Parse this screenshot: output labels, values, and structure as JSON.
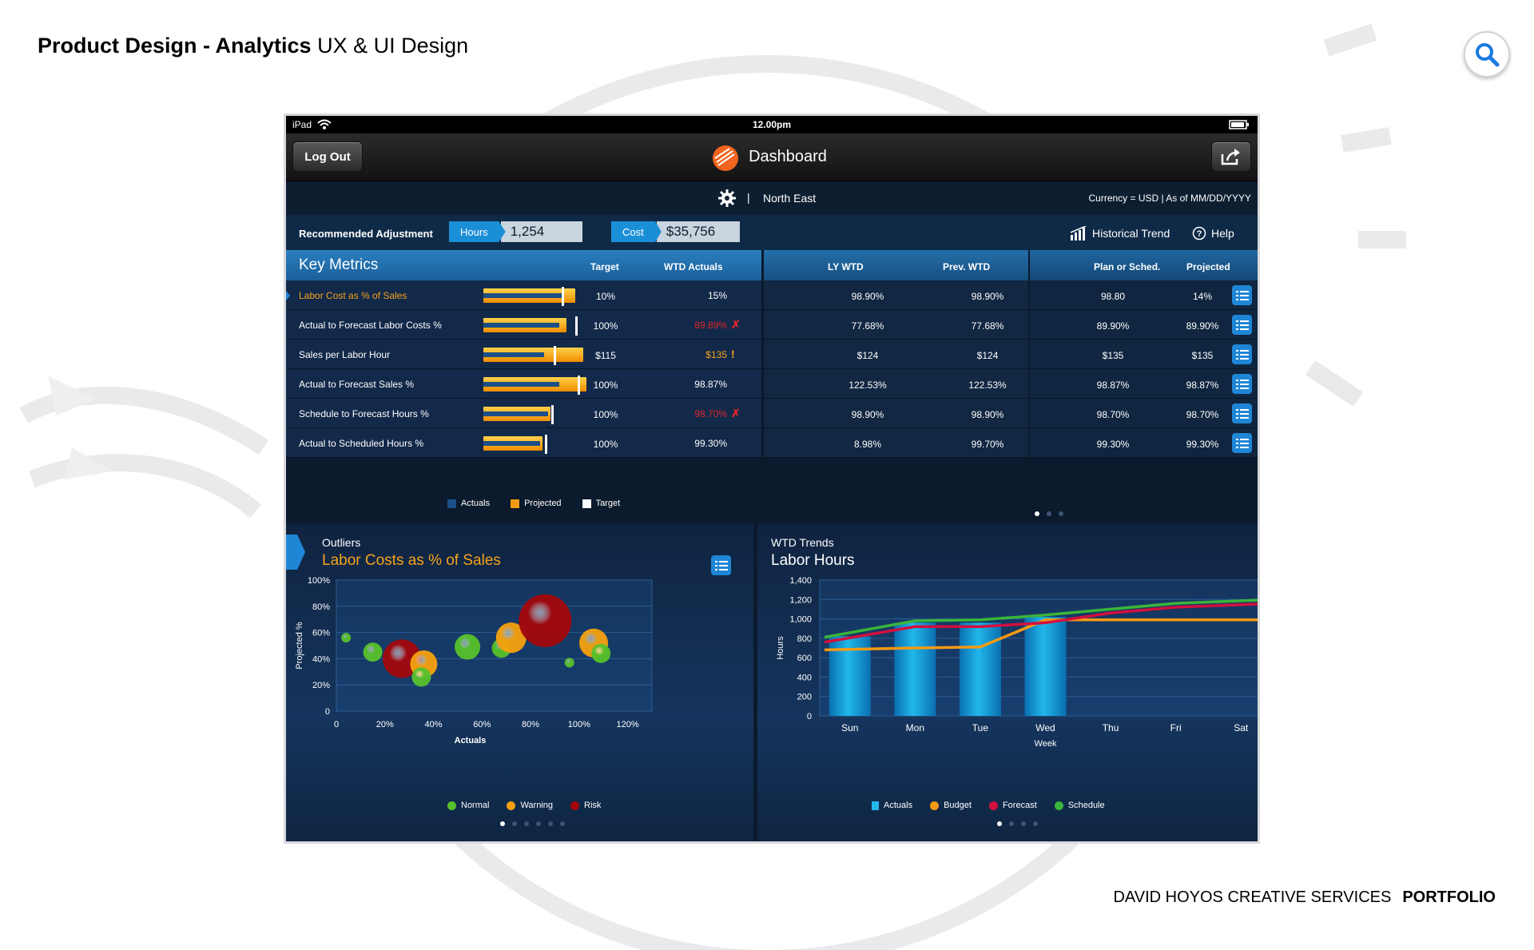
{
  "page": {
    "title_bold": "Product Design - Analytics",
    "title_rest": " UX & UI Design",
    "footer_name": "DAVID HOYOS CREATIVE SERVICES",
    "footer_bold": "PORTFOLIO",
    "search_icon": "search-icon"
  },
  "statusbar": {
    "device": "iPad",
    "time": "12.00pm"
  },
  "navbar": {
    "logout": "Log Out",
    "title": "Dashboard"
  },
  "region": {
    "name": "North East",
    "meta": "Currency = USD  |  As of MM/DD/YYYY",
    "sep": "|"
  },
  "adjustment": {
    "label": "Recommended Adjustment",
    "hours_tag": "Hours",
    "hours_val": "1,254",
    "cost_tag": "Cost",
    "cost_val": "$35,756",
    "historical": "Historical Trend",
    "help": "Help"
  },
  "metrics": {
    "title": "Key Metrics",
    "headers": {
      "target": "Target",
      "wtd": "WTD Actuals",
      "ly": "LY WTD",
      "prev": "Prev. WTD",
      "plan": "Plan or Sched.",
      "proj": "Projected"
    },
    "rows": [
      {
        "name": "Labor Cost as % of Sales",
        "highlight": true,
        "target": "10%",
        "actual": "15%",
        "actual_color": "#ffffff",
        "mark": "",
        "ly": "98.90%",
        "prev": "98.90%",
        "plan": "98.80",
        "proj": "14%",
        "bar_proj": 0.82,
        "bar_act": 0.7,
        "bar_tgt": 0.7
      },
      {
        "name": "Actual to Forecast Labor Costs %",
        "highlight": false,
        "target": "100%",
        "actual": "89.89%",
        "actual_color": "#e0262a",
        "mark": "✗",
        "mark_color": "#e0262a",
        "ly": "77.68%",
        "prev": "77.68%",
        "plan": "89.90%",
        "proj": "89.90%",
        "bar_proj": 0.74,
        "bar_act": 0.68,
        "bar_tgt": 0.82
      },
      {
        "name": "Sales per Labor Hour",
        "highlight": false,
        "target": "$115",
        "actual": "$135",
        "actual_color": "#f6a31c",
        "mark": "!",
        "mark_color": "#f6a31c",
        "ly": "$124",
        "prev": "$124",
        "plan": "$135",
        "proj": "$135",
        "bar_proj": 0.89,
        "bar_act": 0.54,
        "bar_tgt": 0.63
      },
      {
        "name": "Actual to Forecast Sales %",
        "highlight": false,
        "target": "100%",
        "actual": "98.87%",
        "actual_color": "#ffffff",
        "mark": "",
        "ly": "122.53%",
        "prev": "122.53%",
        "plan": "98.87%",
        "proj": "98.87%",
        "bar_proj": 0.92,
        "bar_act": 0.68,
        "bar_tgt": 0.84
      },
      {
        "name": "Schedule to Forecast Hours %",
        "highlight": false,
        "target": "100%",
        "actual": "98.70%",
        "actual_color": "#e0262a",
        "mark": "✗",
        "mark_color": "#e0262a",
        "ly": "98.90%",
        "prev": "98.90%",
        "plan": "98.70%",
        "proj": "98.70%",
        "bar_proj": 0.6,
        "bar_act": 0.58,
        "bar_tgt": 0.61
      },
      {
        "name": "Actual to Scheduled Hours %",
        "highlight": false,
        "target": "100%",
        "actual": "99.30%",
        "actual_color": "#ffffff",
        "mark": "",
        "ly": "8.98%",
        "prev": "99.70%",
        "plan": "99.30%",
        "proj": "99.30%",
        "bar_proj": 0.53,
        "bar_act": 0.51,
        "bar_tgt": 0.55
      }
    ],
    "legend": {
      "actuals": "Actuals",
      "projected": "Projected",
      "target": "Target"
    }
  },
  "colors": {
    "actual_bar": "#1b4f86",
    "projected_bar": "#f39a12",
    "normal": "#57c12b",
    "warning": "#f5a10f",
    "risk": "#a3080c",
    "budget": "#f59a14",
    "forecast": "#d2103e",
    "schedule": "#3bb53a",
    "actuals_col": "#21b8ea"
  },
  "outliers": {
    "kicker": "Outliers",
    "title": "Labor Costs as % of Sales",
    "legend": {
      "normal": "Normal",
      "warning": "Warning",
      "risk": "Risk"
    }
  },
  "trends": {
    "kicker": "WTD Trends",
    "title": "Labor Hours",
    "legend": {
      "actuals": "Actuals",
      "budget": "Budget",
      "forecast": "Forecast",
      "schedule": "Schedule"
    }
  },
  "chart_data": [
    {
      "type": "scatter",
      "title": "Labor Costs as % of Sales",
      "xlabel": "Actuals",
      "ylabel": "Projected %",
      "xticks": [
        "0",
        "20%",
        "40%",
        "60%",
        "80%",
        "100%",
        "120%"
      ],
      "yticks": [
        "0",
        "20%",
        "40%",
        "60%",
        "80%",
        "100%"
      ],
      "xlim": [
        0,
        130
      ],
      "ylim": [
        0,
        100
      ],
      "points": [
        {
          "x": 4,
          "y": 56,
          "size": 6,
          "status": "normal"
        },
        {
          "x": 15,
          "y": 45,
          "size": 12,
          "status": "normal"
        },
        {
          "x": 27,
          "y": 40,
          "size": 24,
          "status": "risk"
        },
        {
          "x": 36,
          "y": 36,
          "size": 17,
          "status": "warning"
        },
        {
          "x": 35,
          "y": 26,
          "size": 12,
          "status": "normal"
        },
        {
          "x": 54,
          "y": 49,
          "size": 16,
          "status": "normal"
        },
        {
          "x": 68,
          "y": 48,
          "size": 12,
          "status": "normal"
        },
        {
          "x": 72,
          "y": 56,
          "size": 19,
          "status": "warning"
        },
        {
          "x": 86,
          "y": 69,
          "size": 33,
          "status": "risk"
        },
        {
          "x": 96,
          "y": 37,
          "size": 6,
          "status": "normal"
        },
        {
          "x": 106,
          "y": 52,
          "size": 18,
          "status": "warning"
        },
        {
          "x": 109,
          "y": 44,
          "size": 12,
          "status": "normal"
        }
      ]
    },
    {
      "type": "bar",
      "title": "Labor Hours",
      "xlabel": "Week",
      "ylabel": "Hours",
      "categories": [
        "Sun",
        "Mon",
        "Tue",
        "Wed",
        "Thu",
        "Fri",
        "Sat"
      ],
      "yticks": [
        "0",
        "200",
        "400",
        "600",
        "800",
        "1,000",
        "1,200",
        "1,400"
      ],
      "ylim": [
        0,
        1400
      ],
      "bars": {
        "name": "Actuals",
        "values": [
          820,
          960,
          960,
          1020,
          null,
          null,
          null
        ]
      },
      "series": [
        {
          "name": "Budget",
          "values": [
            680,
            700,
            710,
            990,
            990,
            990,
            990
          ]
        },
        {
          "name": "Forecast",
          "values": [
            760,
            920,
            920,
            960,
            1060,
            1120,
            1160
          ]
        },
        {
          "name": "Schedule",
          "values": [
            810,
            980,
            990,
            1040,
            1100,
            1160,
            1200
          ]
        }
      ]
    }
  ]
}
